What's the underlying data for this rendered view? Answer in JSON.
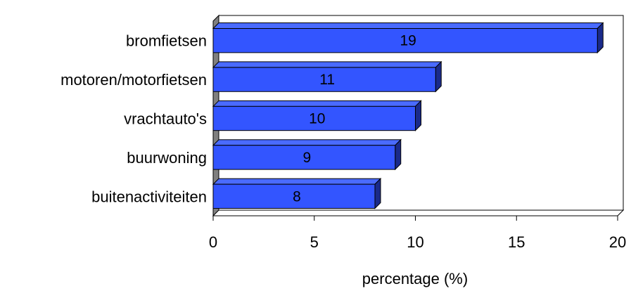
{
  "chart_data": {
    "type": "bar",
    "orientation": "horizontal",
    "style": "3d",
    "categories": [
      "bromfietsen",
      "motoren/motorfietsen",
      "vrachtauto's",
      "buurwoning",
      "buitenactiviteiten"
    ],
    "values": [
      19,
      11,
      10,
      9,
      8
    ],
    "data_labels": [
      "19",
      "11",
      "10",
      "9",
      "8"
    ],
    "title": "",
    "xlabel": "percentage (%)",
    "ylabel": "",
    "xlim": [
      0,
      20
    ],
    "x_ticks": [
      0,
      5,
      10,
      15,
      20
    ],
    "x_tick_labels": [
      "0",
      "5",
      "10",
      "15",
      "20"
    ],
    "grid": false,
    "legend": "none",
    "colors": {
      "bar_front": "#3355ff",
      "bar_top": "#4a6bff",
      "bar_side": "#1a2a8a",
      "wall": "#ffffff",
      "wall_side": "#808080",
      "axis": "#000000"
    }
  }
}
